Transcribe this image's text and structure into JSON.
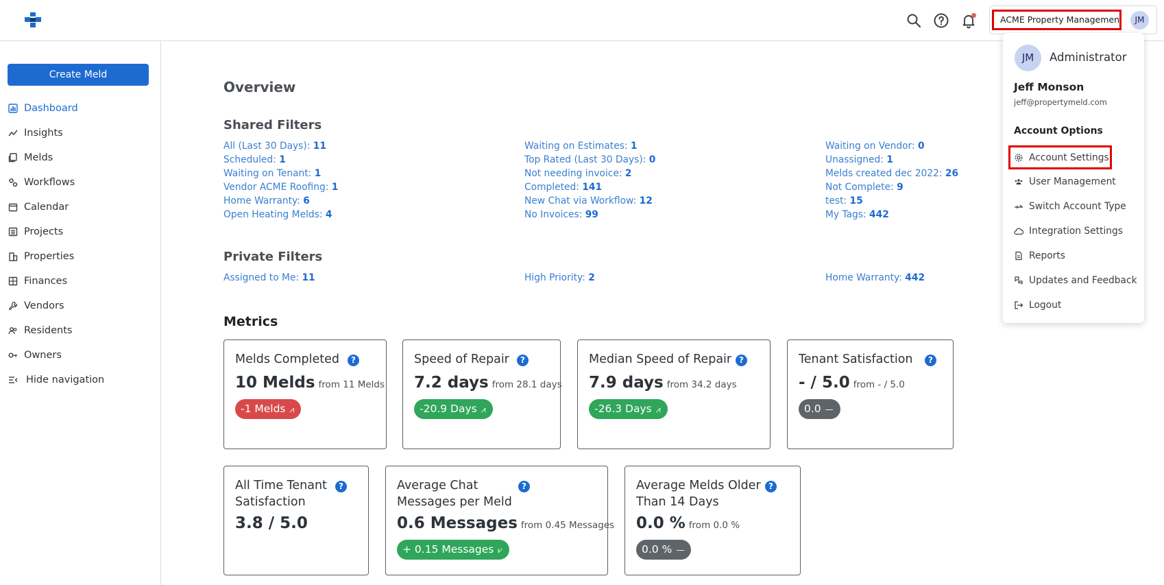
{
  "header": {
    "account_name": "ACME Property Management",
    "avatar_initials": "JM",
    "icons": [
      "search-icon",
      "help-icon",
      "bell-icon"
    ]
  },
  "sidebar": {
    "create_label": "Create Meld",
    "items": [
      {
        "label": "Dashboard",
        "icon": "dashboard-icon",
        "active": true
      },
      {
        "label": "Insights",
        "icon": "insights-icon"
      },
      {
        "label": "Melds",
        "icon": "melds-icon"
      },
      {
        "label": "Workflows",
        "icon": "workflows-icon"
      },
      {
        "label": "Calendar",
        "icon": "calendar-icon"
      },
      {
        "label": "Projects",
        "icon": "projects-icon"
      },
      {
        "label": "Properties",
        "icon": "properties-icon"
      },
      {
        "label": "Finances",
        "icon": "finances-icon"
      },
      {
        "label": "Vendors",
        "icon": "vendors-icon"
      },
      {
        "label": "Residents",
        "icon": "residents-icon"
      },
      {
        "label": "Owners",
        "icon": "owners-icon"
      },
      {
        "label": "Hide navigation",
        "icon": "hide-nav-icon"
      }
    ]
  },
  "main": {
    "overview_title": "Overview",
    "shared_title": "Shared Filters",
    "shared_filters": [
      [
        {
          "label": "All (Last 30 Days):",
          "count": "11"
        },
        {
          "label": "Scheduled:",
          "count": "1"
        },
        {
          "label": "Waiting on Tenant:",
          "count": "1"
        },
        {
          "label": "Vendor ACME Roofing:",
          "count": "1"
        },
        {
          "label": "Home Warranty:",
          "count": "6"
        },
        {
          "label": "Open Heating Melds:",
          "count": "4"
        }
      ],
      [
        {
          "label": "Waiting on Estimates:",
          "count": "1"
        },
        {
          "label": "Top Rated (Last 30 Days):",
          "count": "0"
        },
        {
          "label": "Not needing invoice:",
          "count": "2"
        },
        {
          "label": "Completed:",
          "count": "141"
        },
        {
          "label": "New Chat via Workflow:",
          "count": "12"
        },
        {
          "label": "No Invoices:",
          "count": "99"
        }
      ],
      [
        {
          "label": "Waiting on Vendor:",
          "count": "0"
        },
        {
          "label": "Unassigned:",
          "count": "1"
        },
        {
          "label": "Melds created dec 2022:",
          "count": "26"
        },
        {
          "label": "Not Complete:",
          "count": "9"
        },
        {
          "label": "test:",
          "count": "15"
        },
        {
          "label": "My Tags:",
          "count": "442"
        }
      ]
    ],
    "private_title": "Private Filters",
    "private_filters": [
      {
        "label": "Assigned to Me:",
        "count": "11"
      },
      {
        "label": "High Priority:",
        "count": "2"
      },
      {
        "label": "Home Warranty:",
        "count": "442"
      }
    ],
    "metrics_title": "Metrics",
    "metrics": [
      {
        "title": "Melds Completed",
        "value": "10 Melds",
        "from": "from 11 Melds",
        "change": "-1 Melds",
        "tone": "red",
        "trend": "down"
      },
      {
        "title": "Speed of Repair",
        "value": "7.2 days",
        "from": "from 28.1 days",
        "change": "-20.9 Days",
        "tone": "green",
        "trend": "down"
      },
      {
        "title": "Median Speed of Repair",
        "value": "7.9 days",
        "from": "from 34.2 days",
        "change": "-26.3 Days",
        "tone": "green",
        "trend": "down"
      },
      {
        "title": "Tenant Satisfaction",
        "value": "- / 5.0",
        "from": "from - / 5.0",
        "change": "0.0",
        "tone": "grey",
        "trend": "flat"
      },
      {
        "title_line1": "All Time Tenant",
        "title_line2": "Satisfaction",
        "value": "3.8 / 5.0"
      },
      {
        "title_line1": "Average Chat",
        "title_line2": "Messages per Meld",
        "value": "0.6 Messages",
        "from": "from 0.45 Messages",
        "change": "+ 0.15 Messages",
        "tone": "green",
        "trend": "up"
      },
      {
        "title_line1": "Average Melds Older",
        "title_line2": "Than 14 Days",
        "value": "0.0 %",
        "from": "from 0.0 %",
        "change": "0.0 %",
        "tone": "grey",
        "trend": "flat"
      }
    ],
    "help_glyph": "?"
  },
  "dropdown": {
    "initials": "JM",
    "role": "Administrator",
    "name": "Jeff Monson",
    "email": "jeff@propertymeld.com",
    "options_title": "Account Options",
    "items": [
      {
        "label": "Account Settings",
        "icon": "gear-icon",
        "highlighted": true
      },
      {
        "label": "User Management",
        "icon": "users-icon"
      },
      {
        "label": "Switch Account Type",
        "icon": "switch-icon"
      },
      {
        "label": "Integration Settings",
        "icon": "cloud-icon"
      },
      {
        "label": "Reports",
        "icon": "report-icon"
      },
      {
        "label": "Updates and Feedback",
        "icon": "feedback-icon"
      },
      {
        "label": "Logout",
        "icon": "logout-icon"
      }
    ]
  },
  "colors": {
    "accent": "#1d6bd1",
    "link": "#3a7fd0",
    "negative": "#d84a4a",
    "positive": "#2fa65a",
    "neutral": "#5f6469",
    "highlight_box": "#e00000"
  }
}
